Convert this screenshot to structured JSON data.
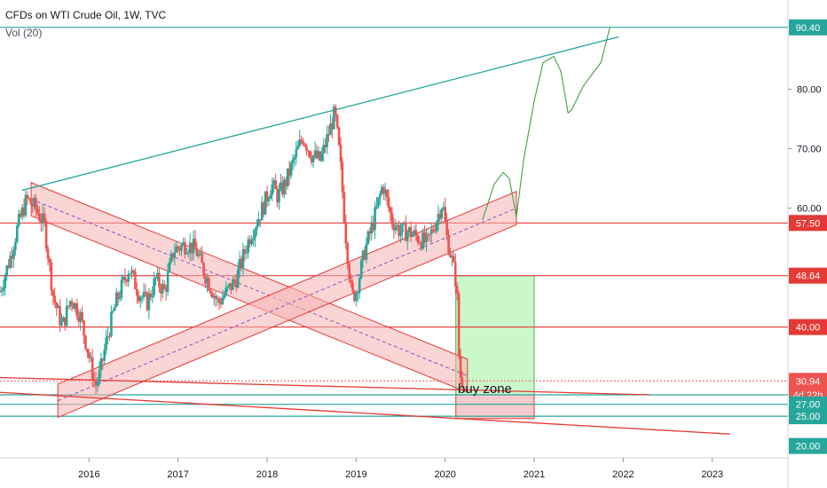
{
  "header": {
    "title": "CFDs on WTI Crude Oil, 1W, TVC",
    "indicator": "Vol (20)"
  },
  "annotation": {
    "buy_zone": "buy zone"
  },
  "colors": {
    "up": "#26a69a",
    "down": "#ef5350",
    "level_red": "#e53935",
    "level_teal": "#26a69a",
    "channel_fill": "#f7b3b3",
    "green_box": "#b9f6b9",
    "projection": "#43a047",
    "grid": "#e6e8eb"
  },
  "chart_data": {
    "type": "candlestick",
    "title": "CFDs on WTI Crude Oil, 1W, TVC",
    "x_axis": {
      "ticks": [
        "2016",
        "2017",
        "2018",
        "2019",
        "2020",
        "2021",
        "2022",
        "2023"
      ]
    },
    "y_axis": {
      "ticks": [
        "80.00",
        "70.00",
        "60.00"
      ],
      "range": [
        18,
        95
      ],
      "position": "right"
    },
    "price_labels": [
      {
        "text": "90.40",
        "value": 90.4,
        "color": "#26a69a"
      },
      {
        "text": "57.50",
        "value": 57.5,
        "color": "#e53935"
      },
      {
        "text": "48.64",
        "value": 48.64,
        "color": "#e53935"
      },
      {
        "text": "40.00",
        "value": 40.0,
        "color": "#e53935"
      },
      {
        "text": "30.94",
        "value": 30.94,
        "color": "#ef5350"
      },
      {
        "text": "4d 22h",
        "value": 28.6,
        "color": "#ef5350"
      },
      {
        "text": "27.00",
        "value": 27.0,
        "color": "#26a69a"
      },
      {
        "text": "25.00",
        "value": 25.0,
        "color": "#26a69a"
      },
      {
        "text": "20.00",
        "value": 20.0,
        "color": "#26a69a"
      }
    ],
    "horizontal_levels": [
      {
        "value": 90.4,
        "color": "#26a69a"
      },
      {
        "value": 57.5,
        "color": "#e53935"
      },
      {
        "value": 48.64,
        "color": "#e53935"
      },
      {
        "value": 40.0,
        "color": "#e53935"
      },
      {
        "value": 30.94,
        "color": "#ef5350",
        "dotted": true
      },
      {
        "value": 28.6,
        "color": "#26a69a"
      },
      {
        "value": 27.0,
        "color": "#26a69a"
      },
      {
        "value": 25.0,
        "color": "#26a69a"
      }
    ],
    "trendlines": [
      {
        "from": [
          "2015.25",
          63
        ],
        "to": [
          "2021.95",
          88.8
        ],
        "color": "#26a69a"
      },
      {
        "from": [
          "2015.0",
          31.5
        ],
        "to": [
          "2022.3",
          28.6
        ],
        "color": "#e53935"
      },
      {
        "from": [
          "2015.0",
          29.0
        ],
        "to": [
          "2023.2",
          22.0
        ],
        "color": "#e53935"
      }
    ],
    "channels": [
      {
        "from": [
          "2015.35",
          61.5
        ],
        "to": [
          "2020.25",
          31.8
        ],
        "width": 2.8
      },
      {
        "from": [
          "2015.65",
          27.6
        ],
        "to": [
          "2020.8",
          60.0
        ],
        "width": 2.8
      }
    ],
    "boxes": [
      {
        "x": [
          "2020.12",
          "2021.0"
        ],
        "y": [
          28.6,
          48.64
        ],
        "kind": "green"
      },
      {
        "x": [
          "2020.12",
          "2021.0"
        ],
        "y": [
          24.6,
          28.6
        ],
        "kind": "red"
      }
    ],
    "projection": [
      [
        "2020.42",
        58.0
      ],
      [
        "2020.55",
        64.0
      ],
      [
        "2020.65",
        66.0
      ],
      [
        "2020.72",
        65.0
      ],
      [
        "2020.8",
        58.5
      ],
      [
        "2020.88",
        68.0
      ],
      [
        "2021.0",
        78.0
      ],
      [
        "2021.1",
        84.5
      ],
      [
        "2021.22",
        85.5
      ],
      [
        "2021.3",
        83.0
      ],
      [
        "2021.38",
        76.0
      ],
      [
        "2021.42",
        76.5
      ],
      [
        "2021.55",
        80.5
      ],
      [
        "2021.75",
        84.5
      ],
      [
        "2021.85",
        90.4
      ]
    ],
    "price_path": [
      [
        "2015.0",
        46.0
      ],
      [
        "2015.12",
        52.0
      ],
      [
        "2015.2",
        57.0
      ],
      [
        "2015.3",
        61.5
      ],
      [
        "2015.4",
        60.0
      ],
      [
        "2015.5",
        57.0
      ],
      [
        "2015.6",
        45.0
      ],
      [
        "2015.7",
        40.0
      ],
      [
        "2015.8",
        45.0
      ],
      [
        "2015.9",
        42.0
      ],
      [
        "2016.0",
        35.0
      ],
      [
        "2016.07",
        30.0
      ],
      [
        "2016.12",
        32.0
      ],
      [
        "2016.2",
        38.0
      ],
      [
        "2016.3",
        44.0
      ],
      [
        "2016.45",
        50.0
      ],
      [
        "2016.55",
        46.0
      ],
      [
        "2016.65",
        44.0
      ],
      [
        "2016.75",
        48.0
      ],
      [
        "2016.85",
        46.0
      ],
      [
        "2016.95",
        53.0
      ],
      [
        "2017.1",
        54.0
      ],
      [
        "2017.2",
        53.0
      ],
      [
        "2017.3",
        49.0
      ],
      [
        "2017.45",
        44.0
      ],
      [
        "2017.55",
        46.0
      ],
      [
        "2017.65",
        48.0
      ],
      [
        "2017.8",
        55.0
      ],
      [
        "2017.95",
        60.0
      ],
      [
        "2018.05",
        64.0
      ],
      [
        "2018.12",
        62.0
      ],
      [
        "2018.2",
        64.0
      ],
      [
        "2018.3",
        68.0
      ],
      [
        "2018.4",
        72.0
      ],
      [
        "2018.5",
        69.0
      ],
      [
        "2018.6",
        68.0
      ],
      [
        "2018.7",
        73.0
      ],
      [
        "2018.76",
        76.0
      ],
      [
        "2018.82",
        68.0
      ],
      [
        "2018.88",
        56.0
      ],
      [
        "2018.95",
        45.0
      ],
      [
        "2019.0",
        46.0
      ],
      [
        "2019.1",
        53.0
      ],
      [
        "2019.2",
        58.0
      ],
      [
        "2019.3",
        64.0
      ],
      [
        "2019.4",
        58.0
      ],
      [
        "2019.5",
        56.0
      ],
      [
        "2019.6",
        56.0
      ],
      [
        "2019.7",
        55.0
      ],
      [
        "2019.8",
        54.0
      ],
      [
        "2019.9",
        58.0
      ],
      [
        "2019.97",
        61.0
      ],
      [
        "2020.02",
        55.0
      ],
      [
        "2020.08",
        51.0
      ],
      [
        "2020.13",
        47.0
      ],
      [
        "2020.16",
        32.0
      ],
      [
        "2020.2",
        30.9
      ]
    ]
  }
}
